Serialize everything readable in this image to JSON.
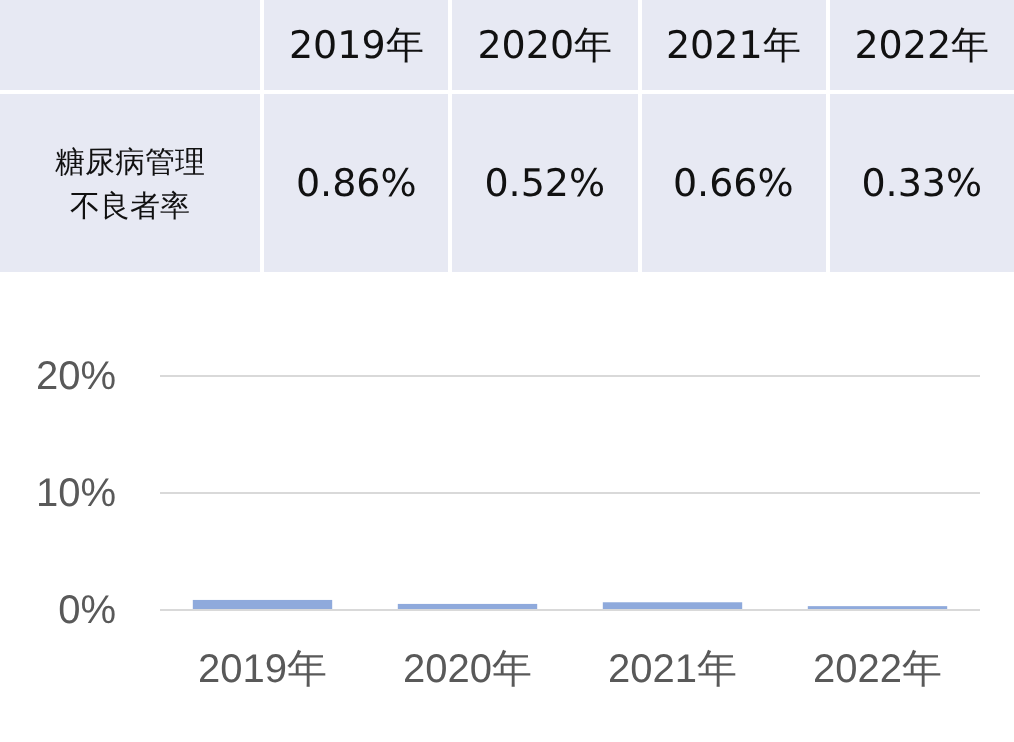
{
  "chart_data": {
    "type": "bar",
    "categories": [
      "2019年",
      "2020年",
      "2021年",
      "2022年"
    ],
    "series": [
      {
        "name": "糖尿病管理不良者率",
        "color": "#8faadc",
        "values": [
          0.86,
          0.52,
          0.66,
          0.33
        ],
        "value_labels": [
          "0.86%",
          "0.52%",
          "0.66%",
          "0.33%"
        ]
      }
    ],
    "ylim": [
      0,
      20
    ],
    "yticks": [
      {
        "value": 0,
        "label": "0%"
      },
      {
        "value": 10,
        "label": "10%"
      },
      {
        "value": 20,
        "label": "20%"
      }
    ],
    "grid": "y"
  }
}
